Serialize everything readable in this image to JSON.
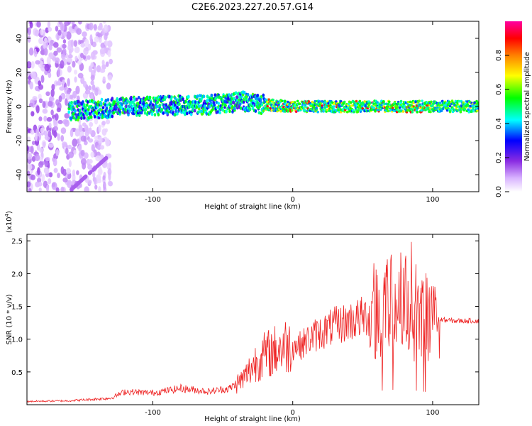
{
  "title": "C2E6.2023.227.20.57.G14",
  "chart_data": [
    {
      "type": "heatmap",
      "xlabel": "Height of straight line (km)",
      "ylabel": "Frequency (Hz)",
      "xlim": [
        -190,
        133
      ],
      "ylim": [
        -50,
        50
      ],
      "x_ticks": [
        -100,
        0,
        100
      ],
      "y_ticks": [
        -40,
        -20,
        0,
        20,
        40
      ],
      "colorbar": {
        "label": "Normalized spectral amplitude",
        "range": [
          0,
          1
        ],
        "ticks": [
          "0.0",
          "0.2",
          "0.4",
          "0.6",
          "0.8"
        ],
        "colormap": [
          "#ffffff",
          "#d9b3ff",
          "#8a2be2",
          "#0000ff",
          "#00ffff",
          "#00ff00",
          "#ffff00",
          "#ff8000",
          "#ff0000",
          "#ff00ff"
        ]
      },
      "features": {
        "noise_region_x": [
          -190,
          -130
        ],
        "diagonal_streak": {
          "x": [
            -160,
            -133
          ],
          "y": [
            -50,
            -30
          ]
        },
        "signal_band_center": [
          {
            "x": -160,
            "y": -3
          },
          {
            "x": -120,
            "y": 0
          },
          {
            "x": -60,
            "y": 1
          },
          {
            "x": -35,
            "y": 3
          },
          {
            "x": -20,
            "y": 1
          },
          {
            "x": 0,
            "y": 0
          },
          {
            "x": 100,
            "y": 0
          },
          {
            "x": 133,
            "y": 0
          }
        ]
      }
    },
    {
      "type": "line",
      "xlabel": "Height of straight line (km)",
      "ylabel": "SNR (10 * v/v)",
      "y_multiplier": "(x10",
      "y_multiplier_exp": "4",
      "xlim": [
        -190,
        133
      ],
      "ylim": [
        0,
        26000
      ],
      "x_ticks": [
        -100,
        0,
        100
      ],
      "y_ticks": [
        "0.5",
        "1.0",
        "1.5",
        "2.0",
        "2.5"
      ],
      "color": "#ee2222",
      "series": [
        {
          "x": [
            -190,
            -160,
            -130,
            -120,
            -100,
            -80,
            -60,
            -45,
            -35,
            -25,
            -15,
            -5,
            5,
            15,
            30,
            45,
            60,
            70,
            80,
            90,
            100,
            105,
            115,
            133
          ],
          "y": [
            500,
            600,
            1000,
            2000,
            1800,
            2500,
            2000,
            2500,
            4000,
            7000,
            8000,
            9000,
            9000,
            10500,
            12000,
            13000,
            14000,
            15000,
            16000,
            14000,
            12000,
            13000,
            12800,
            12800
          ]
        }
      ]
    }
  ]
}
